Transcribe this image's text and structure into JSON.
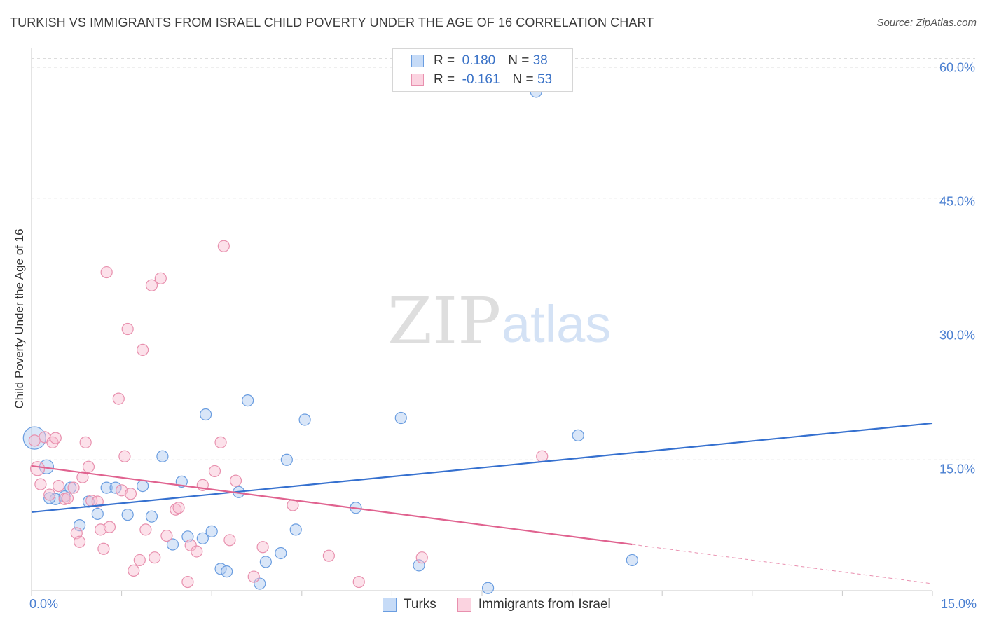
{
  "title": "TURKISH VS IMMIGRANTS FROM ISRAEL CHILD POVERTY UNDER THE AGE OF 16 CORRELATION CHART",
  "source": "Source: ZipAtlas.com",
  "watermark": {
    "zip": "ZIP",
    "atlas": "atlas"
  },
  "legend": {
    "r_label": "R =",
    "n_label": "N =",
    "series": [
      {
        "name": "Turks",
        "r": "0.180",
        "n": "38",
        "color": "#aac8f0",
        "stroke": "#6a9de0"
      },
      {
        "name": "Immigrants from Israel",
        "r": "-0.161",
        "n": "53",
        "color": "#f8bcd0",
        "stroke": "#e890ae"
      }
    ]
  },
  "chart_data": {
    "type": "scatter",
    "title": "TURKISH VS IMMIGRANTS FROM ISRAEL CHILD POVERTY UNDER THE AGE OF 16 CORRELATION CHART",
    "xlabel": "",
    "ylabel": "Child Poverty Under the Age of 16",
    "xlim": [
      0,
      15
    ],
    "ylim": [
      0,
      60
    ],
    "x_tick_labels": [
      "0.0%",
      "15.0%"
    ],
    "y_ticks": [
      15,
      30,
      45,
      60
    ],
    "y_tick_labels": [
      "15.0%",
      "30.0%",
      "45.0%",
      "60.0%"
    ],
    "grid": true,
    "legend_position": "top-center",
    "series": [
      {
        "name": "Turks",
        "color": "#6a9de0",
        "trend": {
          "x0": 0,
          "y0": 9.0,
          "x1": 15,
          "y1": 19.2,
          "solid_to": 15
        },
        "points": [
          [
            0.05,
            17.5,
            16
          ],
          [
            0.25,
            14.2,
            10
          ],
          [
            0.4,
            10.5,
            8
          ],
          [
            0.55,
            10.8,
            8
          ],
          [
            0.65,
            11.8,
            8
          ],
          [
            0.8,
            7.5,
            8
          ],
          [
            0.95,
            10.2,
            8
          ],
          [
            1.1,
            8.8,
            8
          ],
          [
            1.25,
            11.8,
            8
          ],
          [
            1.4,
            11.8,
            8
          ],
          [
            1.6,
            8.7,
            8
          ],
          [
            1.85,
            12.0,
            8
          ],
          [
            2.0,
            8.5,
            8
          ],
          [
            2.18,
            15.4,
            8
          ],
          [
            2.35,
            5.3,
            8
          ],
          [
            2.5,
            12.5,
            8
          ],
          [
            2.6,
            6.2,
            8
          ],
          [
            2.85,
            6.0,
            8
          ],
          [
            2.9,
            20.2,
            8
          ],
          [
            3.0,
            6.8,
            8
          ],
          [
            3.15,
            2.5,
            8
          ],
          [
            3.25,
            2.2,
            8
          ],
          [
            3.45,
            11.3,
            8
          ],
          [
            3.6,
            21.8,
            8
          ],
          [
            3.8,
            0.8,
            8
          ],
          [
            3.9,
            3.3,
            8
          ],
          [
            4.15,
            4.3,
            8
          ],
          [
            4.25,
            15.0,
            8
          ],
          [
            4.4,
            7.0,
            8
          ],
          [
            4.55,
            19.6,
            8
          ],
          [
            5.4,
            9.5,
            8
          ],
          [
            6.15,
            19.8,
            8
          ],
          [
            6.45,
            2.9,
            8
          ],
          [
            7.6,
            0.3,
            8
          ],
          [
            8.4,
            57.2,
            8
          ],
          [
            9.1,
            17.8,
            8
          ],
          [
            10.0,
            3.5,
            8
          ],
          [
            0.3,
            10.6,
            8
          ]
        ]
      },
      {
        "name": "Immigrants from Israel",
        "color": "#e890ae",
        "trend": {
          "x0": 0,
          "y0": 14.3,
          "x1": 15,
          "y1": 0.8,
          "solid_to": 10.0
        },
        "points": [
          [
            0.1,
            14.0,
            10
          ],
          [
            0.15,
            12.2,
            8
          ],
          [
            0.22,
            17.6,
            8
          ],
          [
            0.3,
            11.0,
            8
          ],
          [
            0.35,
            17.0,
            8
          ],
          [
            0.45,
            12.0,
            8
          ],
          [
            0.55,
            10.5,
            8
          ],
          [
            0.7,
            11.8,
            8
          ],
          [
            0.75,
            6.6,
            8
          ],
          [
            0.8,
            5.6,
            8
          ],
          [
            0.85,
            13.0,
            8
          ],
          [
            0.9,
            17.0,
            8
          ],
          [
            0.95,
            14.2,
            8
          ],
          [
            1.0,
            10.3,
            8
          ],
          [
            1.1,
            10.2,
            8
          ],
          [
            1.15,
            7.0,
            8
          ],
          [
            1.2,
            4.8,
            8
          ],
          [
            1.3,
            7.3,
            8
          ],
          [
            1.25,
            36.5,
            8
          ],
          [
            1.45,
            22.0,
            8
          ],
          [
            1.5,
            11.5,
            8
          ],
          [
            1.55,
            15.4,
            8
          ],
          [
            1.6,
            30.0,
            8
          ],
          [
            1.65,
            11.1,
            8
          ],
          [
            1.7,
            2.3,
            8
          ],
          [
            1.8,
            3.5,
            8
          ],
          [
            1.85,
            27.6,
            8
          ],
          [
            1.9,
            7.0,
            8
          ],
          [
            2.0,
            35.0,
            8
          ],
          [
            2.05,
            3.8,
            8
          ],
          [
            2.15,
            35.8,
            8
          ],
          [
            2.25,
            6.3,
            8
          ],
          [
            2.4,
            9.3,
            8
          ],
          [
            2.45,
            9.5,
            8
          ],
          [
            2.6,
            1.0,
            8
          ],
          [
            2.65,
            5.2,
            8
          ],
          [
            2.75,
            4.5,
            8
          ],
          [
            2.85,
            12.1,
            8
          ],
          [
            3.05,
            13.7,
            8
          ],
          [
            3.15,
            17.0,
            8
          ],
          [
            3.2,
            39.5,
            8
          ],
          [
            3.3,
            5.8,
            8
          ],
          [
            3.4,
            12.6,
            8
          ],
          [
            3.7,
            1.6,
            8
          ],
          [
            3.85,
            5.0,
            8
          ],
          [
            4.35,
            9.8,
            8
          ],
          [
            4.95,
            4.0,
            8
          ],
          [
            5.45,
            1.0,
            8
          ],
          [
            6.5,
            3.8,
            8
          ],
          [
            8.5,
            15.4,
            8
          ],
          [
            0.4,
            17.5,
            8
          ],
          [
            0.6,
            10.6,
            8
          ],
          [
            0.05,
            17.2,
            8
          ]
        ]
      }
    ]
  }
}
